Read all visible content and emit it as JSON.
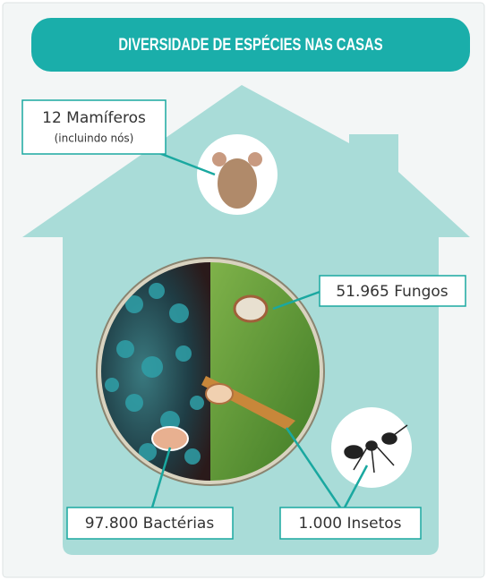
{
  "title": "DIVERSIDADE DE ESPÉCIES NAS CASAS",
  "callouts": [
    {
      "label": "12 Mamíferos",
      "sublabel": "(incluindo nós)"
    },
    {
      "label": "51.965 Fungos"
    },
    {
      "label": "97.800 Bactérias"
    },
    {
      "label": "1.000 Insetos"
    }
  ]
}
